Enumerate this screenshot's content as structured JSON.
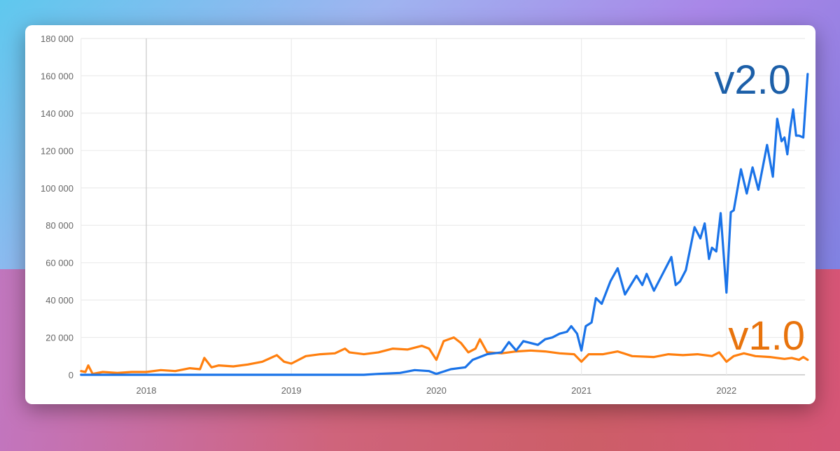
{
  "chart_data": {
    "type": "line",
    "title": "",
    "xlabel": "",
    "ylabel": "",
    "xlim": [
      2017.55,
      2022.56
    ],
    "ylim": [
      0,
      180000
    ],
    "grid": true,
    "x_ticks": [
      "2018",
      "2019",
      "2020",
      "2021",
      "2022"
    ],
    "y_ticks": [
      "0",
      "20 000",
      "40 000",
      "60 000",
      "80 000",
      "100 000",
      "120 000",
      "140 000",
      "160 000",
      "180 000"
    ],
    "series": [
      {
        "name": "v2.0",
        "color": "#1a73e8",
        "label_color": "#1c5fa8",
        "x": [
          2017.55,
          2019.5,
          2019.6,
          2019.75,
          2019.85,
          2019.95,
          2020.0,
          2020.1,
          2020.2,
          2020.25,
          2020.35,
          2020.45,
          2020.5,
          2020.55,
          2020.6,
          2020.65,
          2020.7,
          2020.75,
          2020.8,
          2020.85,
          2020.9,
          2020.93,
          2020.97,
          2021.0,
          2021.03,
          2021.07,
          2021.1,
          2021.14,
          2021.2,
          2021.25,
          2021.3,
          2021.38,
          2021.42,
          2021.45,
          2021.5,
          2021.58,
          2021.62,
          2021.65,
          2021.68,
          2021.72,
          2021.78,
          2021.82,
          2021.85,
          2021.88,
          2021.9,
          2021.93,
          2021.96,
          2022.0,
          2022.03,
          2022.05,
          2022.1,
          2022.14,
          2022.18,
          2022.22,
          2022.28,
          2022.32,
          2022.35,
          2022.38,
          2022.4,
          2022.42,
          2022.44,
          2022.46,
          2022.48,
          2022.5,
          2022.53,
          2022.56
        ],
        "y": [
          0,
          0,
          500,
          1000,
          2500,
          2000,
          500,
          3000,
          4000,
          8000,
          11000,
          12000,
          17500,
          13000,
          18000,
          17000,
          16000,
          19000,
          20000,
          22000,
          23000,
          26000,
          22000,
          13000,
          26000,
          28000,
          41000,
          38000,
          50000,
          57000,
          43000,
          53000,
          48000,
          54000,
          45000,
          57000,
          63000,
          48000,
          50000,
          56000,
          79000,
          73000,
          81000,
          62000,
          68000,
          66000,
          86500,
          44000,
          87000,
          88000,
          110000,
          97000,
          111000,
          99000,
          123000,
          106000,
          137000,
          125000,
          127000,
          118000,
          132000,
          142000,
          128000,
          128000,
          127000,
          161000
        ]
      },
      {
        "name": "v1.0",
        "color": "#ff7f0e",
        "label_color": "#e8730c",
        "x": [
          2017.55,
          2017.58,
          2017.6,
          2017.63,
          2017.7,
          2017.8,
          2017.9,
          2018.0,
          2018.1,
          2018.2,
          2018.3,
          2018.37,
          2018.4,
          2018.45,
          2018.5,
          2018.6,
          2018.7,
          2018.8,
          2018.9,
          2018.95,
          2019.0,
          2019.1,
          2019.2,
          2019.3,
          2019.37,
          2019.4,
          2019.5,
          2019.6,
          2019.7,
          2019.8,
          2019.9,
          2019.95,
          2020.0,
          2020.05,
          2020.12,
          2020.17,
          2020.22,
          2020.27,
          2020.3,
          2020.35,
          2020.45,
          2020.55,
          2020.65,
          2020.75,
          2020.85,
          2020.95,
          2021.0,
          2021.05,
          2021.15,
          2021.25,
          2021.35,
          2021.5,
          2021.6,
          2021.7,
          2021.8,
          2021.9,
          2021.95,
          2022.0,
          2022.05,
          2022.12,
          2022.2,
          2022.3,
          2022.4,
          2022.45,
          2022.5,
          2022.53,
          2022.56
        ],
        "y": [
          2000,
          1500,
          5000,
          500,
          1500,
          1000,
          1500,
          1500,
          2500,
          2000,
          3500,
          3000,
          9000,
          4000,
          5000,
          4500,
          5500,
          7000,
          10500,
          7000,
          6000,
          10000,
          11000,
          11500,
          14000,
          12000,
          11000,
          12000,
          14000,
          13500,
          15500,
          14000,
          8000,
          18000,
          20000,
          17000,
          12000,
          14000,
          19000,
          12000,
          11500,
          12500,
          13000,
          12500,
          11500,
          11000,
          7000,
          11000,
          11000,
          12500,
          10000,
          9500,
          11000,
          10500,
          11000,
          10000,
          12000,
          7000,
          10000,
          11500,
          10000,
          9500,
          8500,
          9000,
          8000,
          9500,
          8000
        ]
      }
    ]
  }
}
